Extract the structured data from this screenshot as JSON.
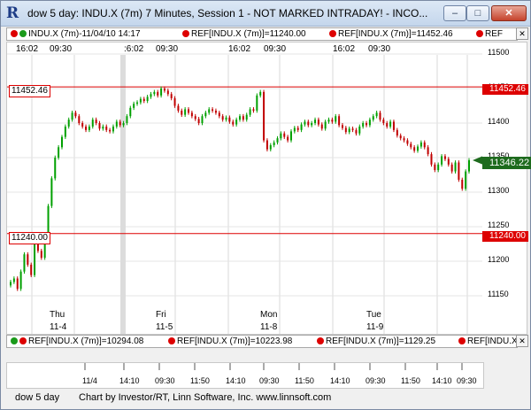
{
  "window": {
    "title": "dow 5 day: INDU.X (7m) 7 Minutes, Session 1 - NOT MARKED INTRADAY! - INCO...",
    "app_icon": "R",
    "minimize_glyph": "–",
    "maximize_glyph": "□",
    "close_glyph": "✕"
  },
  "top_ref_bar": {
    "items": [
      "INDU.X (7m)-11/04/10 14:17",
      "REF[INDU.X (7m)]=11240.00",
      "REF[INDU.X (7m)]=11452.46",
      "REF"
    ],
    "scroll_glyph": "✕"
  },
  "chart": {
    "top_time_labels": [
      "16:02",
      "09:30",
      ":6:02",
      "09:30",
      "16:02",
      "09:30",
      "16:02",
      "09:30"
    ],
    "days": [
      {
        "name": "Thu",
        "date": "11-4"
      },
      {
        "name": "Fri",
        "date": "11-5"
      },
      {
        "name": "Mon",
        "date": "11-8"
      },
      {
        "name": "Tue",
        "date": "11-9"
      }
    ],
    "y_ticks": [
      "11500",
      "11450",
      "11400",
      "11350",
      "11300",
      "11250",
      "11200",
      "11150"
    ],
    "ref_high": "11452.46",
    "ref_low": "11240.00",
    "last_price": "11346.22",
    "colors": {
      "up": "#00a000",
      "down": "#c00000",
      "ref_line": "#dd0000",
      "last_tag": "#1e6b1e"
    }
  },
  "chart_data": {
    "type": "line",
    "ylim": [
      11100,
      11520
    ],
    "y_ticks": [
      11150,
      11200,
      11250,
      11300,
      11350,
      11400,
      11450,
      11500
    ],
    "x_labels": [
      "11/4",
      "14:10",
      "09:30",
      "11:50",
      "14:10",
      "09:30",
      "11:50",
      "14:10",
      "09:30",
      "11:50",
      "14:10",
      "09:30"
    ],
    "reference_lines": [
      11452.46,
      11240.0
    ],
    "last_value": 11346.22,
    "series": [
      {
        "values": [
          11170,
          11175,
          11160,
          11185,
          11210,
          11195,
          11180,
          11225,
          11215,
          11205,
          11235,
          11280,
          11320,
          11350,
          11365,
          11380,
          11395,
          11405,
          11415,
          11410,
          11400,
          11395,
          11390,
          11395,
          11405,
          11400,
          11392,
          11395,
          11390,
          11388,
          11395,
          11402,
          11397,
          11400,
          11410,
          11422,
          11428,
          11430,
          11435,
          11432,
          11438,
          11442,
          11445,
          11440,
          11450,
          11447,
          11442,
          11436,
          11425,
          11418,
          11412,
          11420,
          11415,
          11410,
          11406,
          11400,
          11410,
          11415,
          11420,
          11418,
          11415,
          11410,
          11405,
          11408,
          11402,
          11398,
          11405,
          11410,
          11405,
          11412,
          11420,
          11418,
          11440,
          11445,
          11375,
          11362,
          11368,
          11372,
          11378,
          11385,
          11380,
          11375,
          11388,
          11393,
          11390,
          11398,
          11402,
          11397,
          11400,
          11405,
          11398,
          11392,
          11402,
          11405,
          11402,
          11410,
          11397,
          11393,
          11387,
          11392,
          11390,
          11385,
          11395,
          11400,
          11397,
          11405,
          11410,
          11415,
          11405,
          11400,
          11395,
          11402,
          11390,
          11382,
          11378,
          11375,
          11370,
          11365,
          11360,
          11366,
          11372,
          11365,
          11355,
          11340,
          11332,
          11340,
          11352,
          11348,
          11340,
          11330,
          11343,
          11318,
          11305,
          11330,
          11346.22
        ]
      }
    ]
  },
  "bottom_ref_bar": {
    "items": [
      "REF[INDU.X (7m)]=10294.08",
      "REF[INDU.X (7m)]=10223.98",
      "REF[INDU.X (7m)]=1129.25",
      "REF[INDU.X"
    ],
    "scroll_glyph": "✕"
  },
  "x_axis": {
    "labels": [
      "11/4",
      "14:10",
      "09:30",
      "11:50",
      "14:10",
      "09:30",
      "11:50",
      "14:10",
      "09:30",
      "11:50",
      "14:10",
      "09:30"
    ]
  },
  "status_bar": {
    "chart_name": "dow 5 day",
    "credit": "Chart by Investor/RT, Linn Software, Inc. www.linnsoft.com"
  }
}
